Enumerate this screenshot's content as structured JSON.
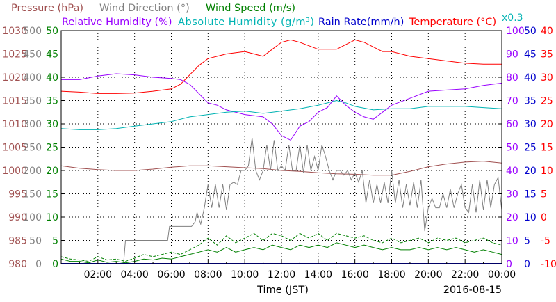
{
  "chart_data": {
    "type": "line",
    "xlabel": "Time (JST)",
    "date": "2016-08-15",
    "grid": true,
    "x_ticks": [
      "02:00",
      "04:00",
      "06:00",
      "08:00",
      "10:00",
      "12:00",
      "14:00",
      "16:00",
      "18:00",
      "20:00",
      "22:00",
      "00:00"
    ],
    "legend": [
      {
        "text": "Pressure (hPa)",
        "color": "#a05050"
      },
      {
        "text": "Wind Direction (°)",
        "color": "#808080"
      },
      {
        "text": "Wind Speed (m/s)",
        "color": "#008000"
      },
      {
        "text": "Relative Humidity (%)",
        "color": "#9900ff"
      },
      {
        "text": "Absolute Humidity (g/m³)",
        "color": "#00b3b3"
      },
      {
        "text": "Rain Rate(mm/h)",
        "color": "#0000cc"
      },
      {
        "text": "Temperature (°C)",
        "color": "#ff0000"
      },
      {
        "text": "x0.3",
        "color": "#00b3b3"
      }
    ],
    "axes": {
      "pressure": {
        "color": "#a05050",
        "range": [
          980,
          1030
        ],
        "ticks": [
          "1030",
          "1025",
          "1020",
          "1015",
          "1010",
          "1005",
          "1000",
          "995",
          "990",
          "985",
          "980"
        ]
      },
      "wind_direction": {
        "color": "#808080",
        "range": [
          0,
          500
        ],
        "ticks": [
          "500",
          "450",
          "400",
          "350",
          "300",
          "250",
          "200",
          "150",
          "100",
          "50",
          "0"
        ]
      },
      "wind_speed": {
        "color": "#008000",
        "range": [
          0,
          50
        ],
        "ticks": [
          "50",
          "45",
          "40",
          "35",
          "30",
          "25",
          "20",
          "15",
          "10",
          "5",
          "0"
        ]
      },
      "relative_humidity": {
        "color": "#9900ff",
        "range": [
          0,
          100
        ],
        "ticks": [
          "100",
          "90",
          "80",
          "70",
          "60",
          "50",
          "40",
          "30",
          "20",
          "10",
          "0"
        ]
      },
      "rain_rate": {
        "color": "#0000cc",
        "range": [
          0,
          50
        ],
        "ticks": [
          "50",
          "45",
          "40",
          "35",
          "30",
          "25",
          "20",
          "15",
          "10",
          "5",
          "0"
        ]
      },
      "temperature": {
        "color": "#ff0000",
        "range": [
          -10,
          40
        ],
        "ticks": [
          "40",
          "35",
          "30",
          "25",
          "20",
          "15",
          "10",
          "5",
          "0",
          "-5",
          "-10"
        ]
      }
    },
    "series": [
      {
        "name": "Temperature (°C)",
        "axis": "temperature",
        "x": [
          0,
          1,
          2,
          3,
          4,
          5,
          6,
          6.5,
          7,
          7.5,
          8,
          8.5,
          9,
          10,
          11,
          11.5,
          12,
          12.5,
          13,
          14,
          15,
          15.5,
          16,
          16.5,
          17,
          17.5,
          18,
          18.5,
          19,
          20,
          21,
          22,
          23,
          24
        ],
        "y": [
          27,
          26.8,
          26.5,
          26.5,
          26.6,
          27,
          27.5,
          28.5,
          30.5,
          32.5,
          34,
          34.5,
          35,
          35.5,
          34.5,
          36,
          37.5,
          38,
          37.5,
          36,
          36,
          37,
          38,
          37.5,
          36.5,
          35.5,
          35.5,
          35,
          34.5,
          34,
          33.5,
          33,
          32.8,
          32.8
        ]
      },
      {
        "name": "Relative Humidity (%)",
        "axis": "relative_humidity",
        "x": [
          0,
          1,
          2,
          3,
          4,
          5,
          6,
          6.5,
          7,
          7.5,
          8,
          8.5,
          9,
          10,
          11,
          11.5,
          12,
          12.5,
          13,
          13.5,
          14,
          14.5,
          15,
          15.5,
          16,
          16.5,
          17,
          17.5,
          18,
          19,
          20,
          21,
          22,
          23,
          24
        ],
        "y": [
          79,
          79,
          80.5,
          81.5,
          81,
          80,
          79.5,
          79,
          77,
          73,
          69,
          68,
          66,
          64,
          63,
          60,
          55,
          53,
          59,
          61,
          65,
          67,
          72,
          68,
          65,
          63,
          62,
          65,
          68,
          71,
          74,
          74.5,
          75,
          76.5,
          77.5
        ]
      },
      {
        "name": "Absolute Humidity (g/m³)",
        "axis": "relative_humidity",
        "x": [
          0,
          1,
          2,
          3,
          4,
          5,
          6,
          7,
          8,
          9,
          10,
          11,
          12,
          13,
          14,
          15,
          15.5,
          16,
          17,
          18,
          19,
          20,
          21,
          22,
          23,
          24
        ],
        "y": [
          58,
          57.5,
          57.5,
          58,
          59,
          60,
          61,
          63,
          64,
          65,
          65.5,
          64.5,
          65.5,
          66.5,
          68,
          70,
          69,
          67.5,
          66,
          66.5,
          66.5,
          67.5,
          67.5,
          67.5,
          67,
          66.5
        ]
      },
      {
        "name": "Pressure (hPa)",
        "axis": "pressure",
        "x": [
          0,
          1,
          2,
          3,
          4,
          5,
          6,
          7,
          8,
          9,
          10,
          11,
          12,
          13,
          14,
          15,
          16,
          17,
          18,
          19,
          20,
          21,
          22,
          23,
          24
        ],
        "y": [
          1001,
          1000.5,
          1000.2,
          1000,
          1000,
          1000.3,
          1000.7,
          1001,
          1001,
          1000.8,
          1000.6,
          1000.4,
          1000,
          999.8,
          999.5,
          999.3,
          999.2,
          999,
          999,
          999.8,
          1000.8,
          1001.4,
          1001.8,
          1002,
          1001.6
        ]
      },
      {
        "name": "Wind Direction (°)",
        "axis": "wind_direction",
        "x": [
          0,
          3.4,
          3.5,
          5.8,
          5.9,
          7.1,
          7.3,
          7.4,
          7.6,
          7.8,
          8.0,
          8.2,
          8.4,
          8.6,
          8.8,
          9.0,
          9.2,
          9.4,
          9.6,
          9.8,
          10.0,
          10.2,
          10.4,
          10.6,
          10.8,
          11.0,
          11.2,
          11.4,
          11.6,
          11.8,
          12.0,
          12.2,
          12.4,
          12.6,
          12.8,
          13.0,
          13.2,
          13.4,
          13.6,
          13.8,
          14.0,
          14.2,
          14.4,
          14.6,
          14.8,
          15.0,
          15.2,
          15.4,
          15.6,
          15.8,
          16.0,
          16.2,
          16.4,
          16.6,
          16.8,
          17.0,
          17.2,
          17.4,
          17.6,
          17.8,
          18.0,
          18.2,
          18.4,
          18.6,
          18.8,
          19.0,
          19.2,
          19.4,
          19.6,
          19.8,
          20.0,
          20.2,
          20.4,
          20.6,
          20.8,
          21.0,
          21.2,
          21.4,
          21.6,
          21.8,
          22.0,
          22.2,
          22.4,
          22.6,
          22.8,
          23.0,
          23.2,
          23.4,
          23.6,
          23.8,
          24.0
        ],
        "y": [
          0,
          0,
          50,
          50,
          80,
          80,
          90,
          110,
          85,
          120,
          170,
          120,
          170,
          120,
          170,
          115,
          170,
          175,
          170,
          200,
          200,
          210,
          270,
          200,
          180,
          200,
          255,
          200,
          265,
          200,
          210,
          200,
          255,
          200,
          200,
          255,
          195,
          255,
          200,
          230,
          200,
          255,
          230,
          200,
          180,
          200,
          200,
          190,
          200,
          180,
          195,
          175,
          200,
          130,
          180,
          130,
          170,
          130,
          175,
          130,
          200,
          130,
          180,
          120,
          170,
          125,
          175,
          120,
          180,
          70,
          120,
          140,
          120,
          120,
          150,
          120,
          160,
          120,
          150,
          170,
          120,
          110,
          170,
          110,
          180,
          115,
          180,
          120,
          170,
          185,
          115
        ]
      },
      {
        "name": "Wind Speed (m/s)",
        "axis": "wind_speed",
        "x": [
          0,
          0.5,
          1,
          1.5,
          2,
          2.5,
          3,
          3.5,
          4,
          4.5,
          5,
          5.5,
          6,
          6.5,
          7,
          7.5,
          8,
          8.5,
          9,
          9.5,
          10,
          10.5,
          11,
          11.5,
          12,
          12.5,
          13,
          13.5,
          14,
          14.5,
          15,
          15.5,
          16,
          16.5,
          17,
          17.5,
          18,
          18.5,
          19,
          19.5,
          20,
          20.5,
          21,
          21.5,
          22,
          22.5,
          23,
          23.5,
          24
        ],
        "y": [
          1,
          0.5,
          0.5,
          0.2,
          0.8,
          0.3,
          0.5,
          0.2,
          0.5,
          1,
          0.8,
          1.2,
          1,
          1.5,
          2,
          2.5,
          3,
          2.5,
          3.5,
          2.5,
          3,
          3.5,
          3,
          4,
          3.5,
          3,
          4,
          3.5,
          4,
          3.5,
          4.5,
          4,
          3.5,
          4,
          3.5,
          3,
          3.5,
          3,
          3,
          3.5,
          3,
          3.5,
          3,
          3.5,
          3,
          2.5,
          3,
          2.5,
          2
        ]
      },
      {
        "name": "Wind Speed (m/s)",
        "axis": "wind_speed",
        "style": "dashed",
        "x": [
          0,
          0.5,
          1,
          1.5,
          2,
          2.5,
          3,
          3.5,
          4,
          4.5,
          5,
          5.5,
          6,
          6.5,
          7,
          7.5,
          8,
          8.5,
          9,
          9.5,
          10,
          10.5,
          11,
          11.5,
          12,
          12.5,
          13,
          13.5,
          14,
          14.5,
          15,
          15.5,
          16,
          16.5,
          17,
          17.5,
          18,
          18.5,
          19,
          19.5,
          20,
          20.5,
          21,
          21.5,
          22,
          22.5,
          23,
          23.5,
          24
        ],
        "y": [
          1.5,
          1,
          0.8,
          0.5,
          1.5,
          0.8,
          1,
          0.5,
          1.2,
          2,
          1.5,
          2,
          2.5,
          2,
          3,
          4,
          5.5,
          4,
          6,
          4.5,
          5.5,
          6.5,
          5,
          6.5,
          6,
          5,
          6.5,
          5.5,
          6.5,
          5,
          6.5,
          6,
          5.5,
          6,
          5,
          4.5,
          5.5,
          4.5,
          5,
          5.5,
          4.5,
          5.5,
          5,
          5.5,
          4.5,
          5,
          5.5,
          4.5,
          4
        ]
      }
    ]
  }
}
